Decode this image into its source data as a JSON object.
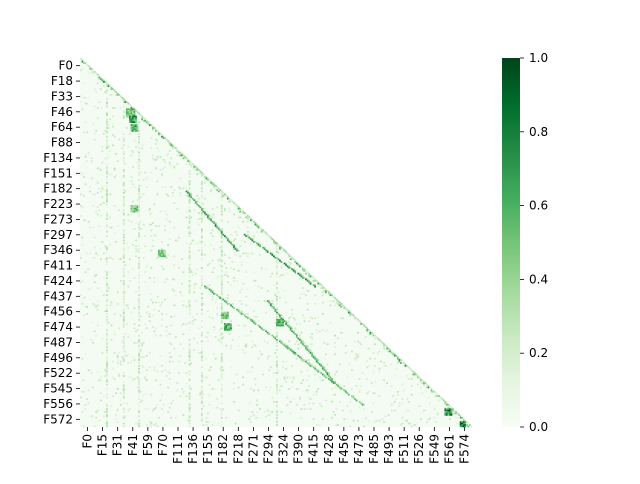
{
  "chart_data": {
    "type": "heatmap",
    "shape": "lower-triangular correlation matrix (upper triangle masked)",
    "title": "",
    "xlabel": "",
    "ylabel": "",
    "n_features": 256,
    "row_tick_labels": [
      "F0",
      "F18",
      "F33",
      "F46",
      "F64",
      "F88",
      "F134",
      "F151",
      "F182",
      "F223",
      "F273",
      "F297",
      "F346",
      "F411",
      "F424",
      "F437",
      "F456",
      "F474",
      "F487",
      "F496",
      "F522",
      "F545",
      "F556",
      "F572"
    ],
    "col_tick_labels": [
      "F0",
      "F15",
      "F31",
      "F41",
      "F59",
      "F70",
      "F111",
      "F136",
      "F155",
      "F182",
      "F218",
      "F271",
      "F294",
      "F324",
      "F390",
      "F415",
      "F428",
      "F456",
      "F473",
      "F485",
      "F493",
      "F511",
      "F526",
      "F549",
      "F561",
      "F574"
    ],
    "colorbar": {
      "min": 0.0,
      "max": 1.0,
      "ticks": [
        "0.0",
        "0.2",
        "0.4",
        "0.6",
        "0.8",
        "1.0"
      ],
      "colormap": "Greens",
      "color_low": "#f7fcf5",
      "color_high": "#00441b"
    },
    "background_value": 0.03,
    "diagonal_value": 0.95,
    "grid": false,
    "highlight_bands": [
      {
        "row_from": 0.36,
        "row_to": 0.52,
        "col_from": 0.27,
        "col_to": 0.4,
        "value": 0.75,
        "step": 1
      },
      {
        "row_from": 0.48,
        "row_to": 0.62,
        "col_from": 0.42,
        "col_to": 0.6,
        "value": 0.8,
        "step": 1
      },
      {
        "row_from": 0.62,
        "row_to": 0.8,
        "col_from": 0.32,
        "col_to": 0.55,
        "value": 0.65,
        "step": 1
      },
      {
        "row_from": 0.66,
        "row_to": 0.88,
        "col_from": 0.48,
        "col_to": 0.65,
        "value": 0.7,
        "step": 1
      },
      {
        "row_from": 0.78,
        "row_to": 0.94,
        "col_from": 0.52,
        "col_to": 0.72,
        "value": 0.6,
        "step": 1
      }
    ],
    "highlight_blocks": [
      {
        "row": 0.14,
        "col": 0.12,
        "size": 0.025,
        "value": 0.6
      },
      {
        "row": 0.16,
        "col": 0.125,
        "size": 0.02,
        "value": 0.85
      },
      {
        "row": 0.18,
        "col": 0.13,
        "size": 0.02,
        "value": 0.7
      },
      {
        "row": 0.69,
        "col": 0.36,
        "size": 0.02,
        "value": 0.6
      },
      {
        "row": 0.72,
        "col": 0.37,
        "size": 0.02,
        "value": 0.75
      },
      {
        "row": 0.71,
        "col": 0.5,
        "size": 0.02,
        "value": 0.7
      },
      {
        "row": 0.95,
        "col": 0.93,
        "size": 0.02,
        "value": 0.9
      },
      {
        "row": 0.985,
        "col": 0.97,
        "size": 0.015,
        "value": 0.95
      },
      {
        "row": 0.52,
        "col": 0.2,
        "size": 0.02,
        "value": 0.55
      },
      {
        "row": 0.4,
        "col": 0.13,
        "size": 0.02,
        "value": 0.6
      }
    ]
  }
}
